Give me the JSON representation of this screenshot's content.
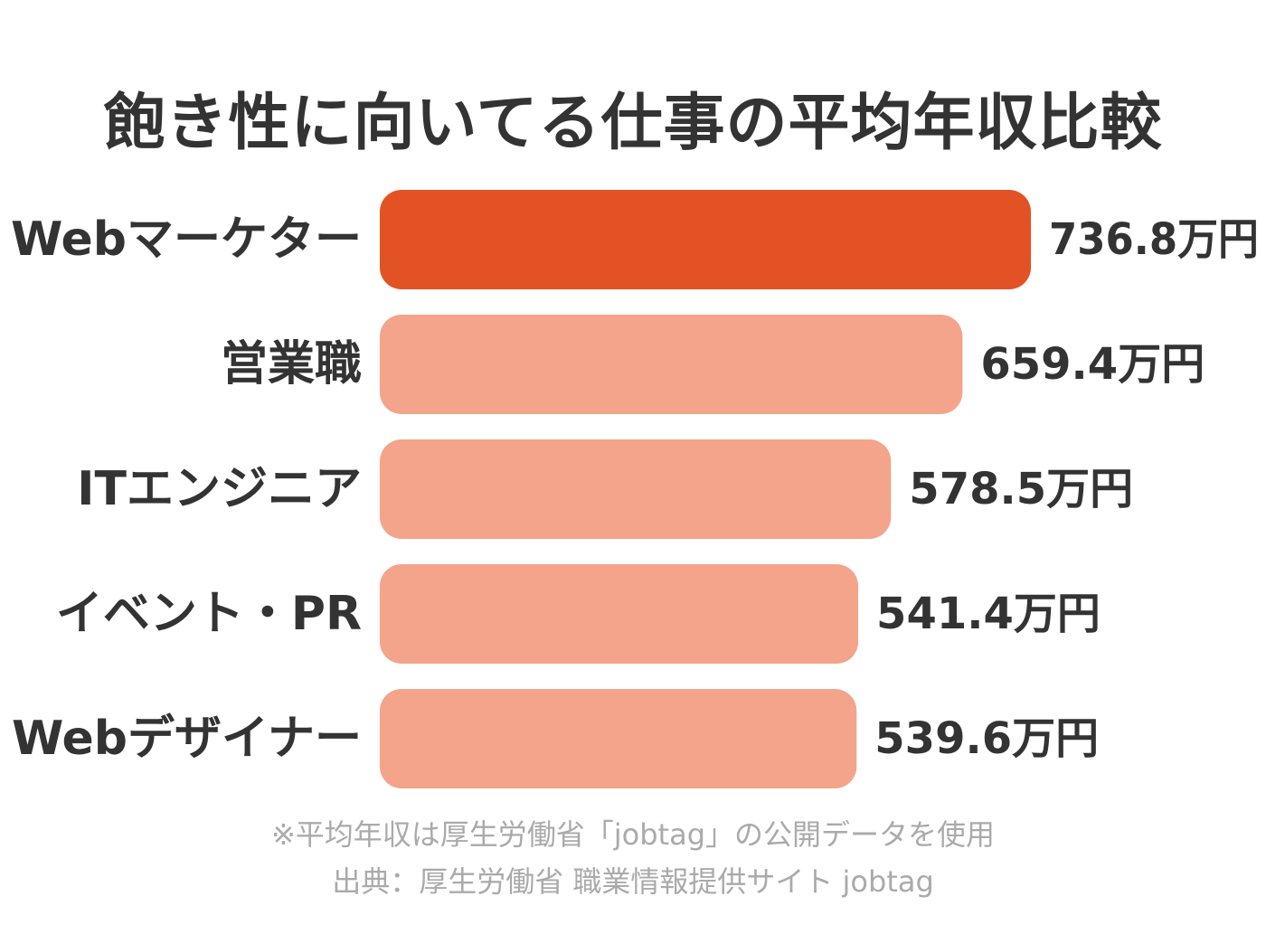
{
  "chart_data": {
    "type": "bar",
    "orientation": "horizontal",
    "title": "飽き性に向いてる仕事の平均年収比較",
    "categories": [
      "Webマーケター",
      "営業職",
      "ITエンジニア",
      "イベント・PR",
      "Webデザイナー"
    ],
    "values": [
      736.8,
      659.4,
      578.5,
      541.4,
      539.6
    ],
    "value_labels": [
      "736.8万円",
      "659.4万円",
      "578.5万円",
      "541.4万円",
      "539.6万円"
    ],
    "unit": "万円",
    "highlight_index": 0,
    "colors": {
      "highlight": "#e35224",
      "default": "#f4a48a",
      "text": "#333333",
      "note": "#aaaaaa"
    },
    "xlim": [
      0,
      736.8
    ],
    "grid": false,
    "legend": "none"
  },
  "notes": {
    "line1": "※平均年収は厚生労働省「jobtag」の公開データを使用",
    "line2": "出典：厚生労働省 職業情報提供サイト jobtag"
  }
}
